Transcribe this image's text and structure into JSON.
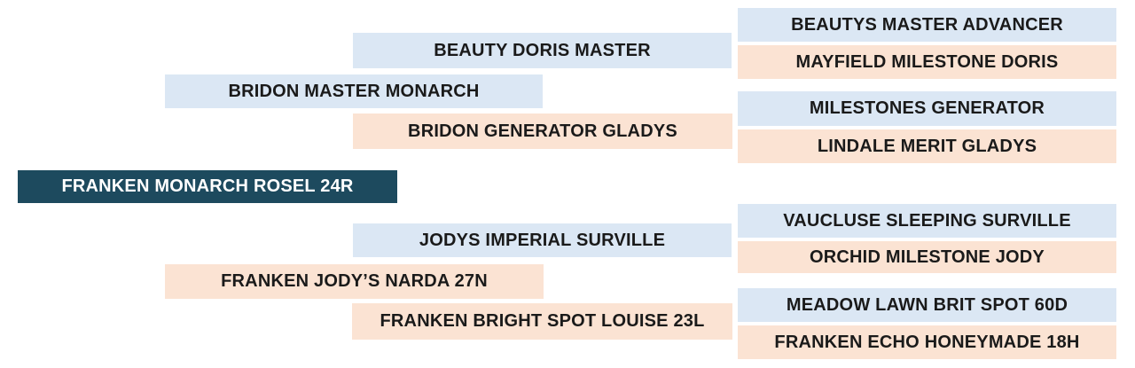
{
  "colors": {
    "sire_bg": "#dbe7f4",
    "dam_bg": "#fbe3d3",
    "root_bg": "#1d4a5e",
    "root_text": "#ffffff",
    "node_text": "#1a1a1a",
    "page_bg": "#ffffff"
  },
  "pedigree": {
    "root": {
      "label": "FRANKEN MONARCH ROSEL 24R"
    },
    "sire": {
      "label": "BRIDON MASTER MONARCH",
      "sire": {
        "label": "BEAUTY DORIS MASTER",
        "sire": {
          "label": "BEAUTYS MASTER ADVANCER"
        },
        "dam": {
          "label": "MAYFIELD MILESTONE DORIS"
        }
      },
      "dam": {
        "label": "BRIDON GENERATOR GLADYS",
        "sire": {
          "label": "MILESTONES GENERATOR"
        },
        "dam": {
          "label": "LINDALE MERIT GLADYS"
        }
      }
    },
    "dam": {
      "label": "FRANKEN JODY’S NARDA 27N",
      "sire": {
        "label": "JODYS IMPERIAL SURVILLE",
        "sire": {
          "label": "VAUCLUSE SLEEPING SURVILLE"
        },
        "dam": {
          "label": "ORCHID MILESTONE JODY"
        }
      },
      "dam": {
        "label": "FRANKEN BRIGHT SPOT LOUISE 23L",
        "sire": {
          "label": "MEADOW LAWN BRIT SPOT 60D"
        },
        "dam": {
          "label": "FRANKEN ECHO HONEYMADE 18H"
        }
      }
    }
  }
}
